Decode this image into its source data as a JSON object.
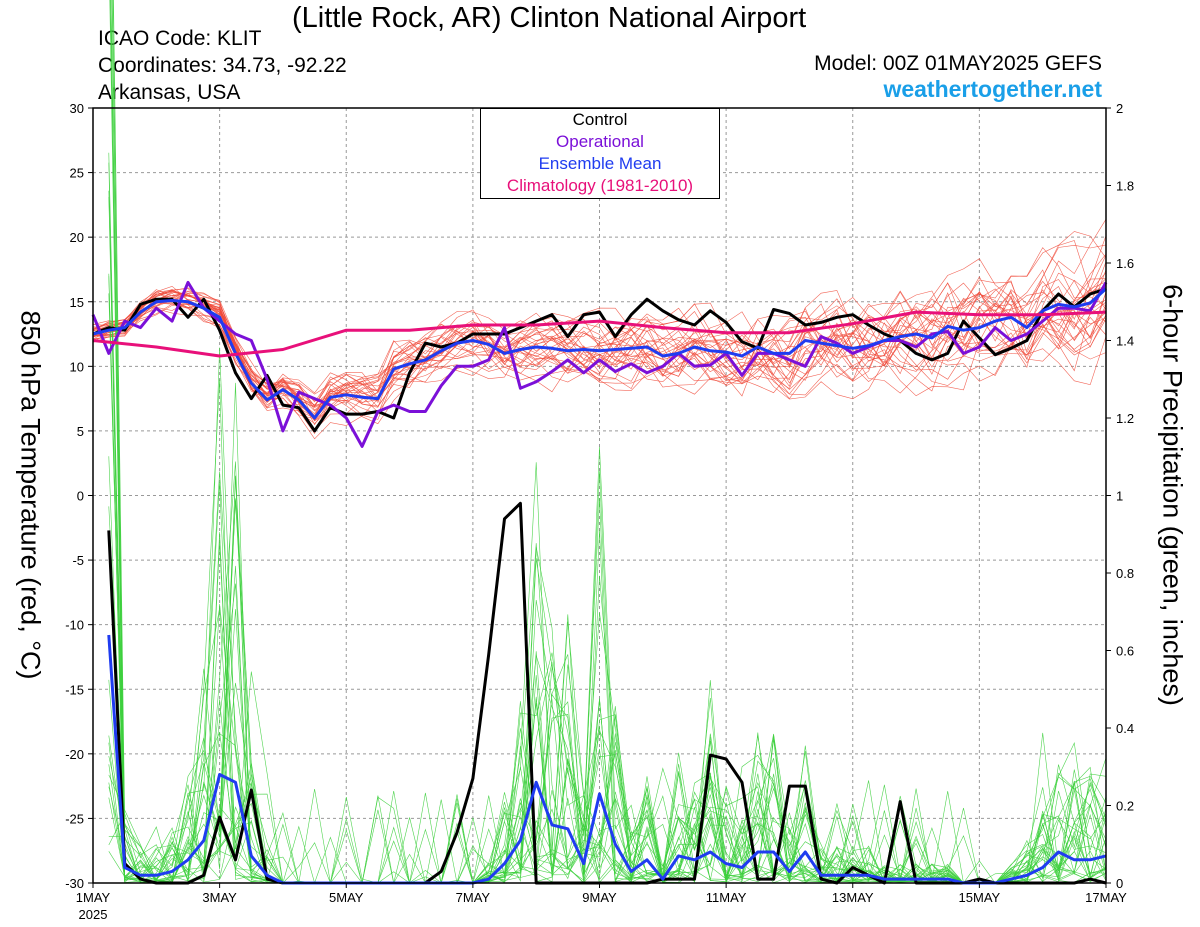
{
  "header": {
    "title": "(Little Rock, AR) Clinton National Airport",
    "icao": "ICAO Code: KLIT",
    "coordinates": "Coordinates: 34.73, -92.22",
    "region": "Arkansas, USA",
    "model": "Model: 00Z 01MAY2025 GEFS",
    "site": "weathertogether.net"
  },
  "legend": {
    "control": "Control",
    "operational": "Operational",
    "ensemble_mean": "Ensemble Mean",
    "climatology": "Climatology (1981-2010)"
  },
  "colors": {
    "control": "#000000",
    "operational": "#7b10d8",
    "ensemble_mean": "#1f3cf0",
    "climatology": "#e8107a",
    "members_temp": "#f04a3a",
    "members_precip": "#3ccf3c",
    "site_link": "#1a9fe8"
  },
  "chart_data": {
    "type": "line",
    "x_unit": "days since 00Z 1 May 2025",
    "xlim": [
      0,
      16
    ],
    "x_ticks": [
      {
        "x": 0,
        "label": "1MAY",
        "sub": "2025"
      },
      {
        "x": 2,
        "label": "3MAY"
      },
      {
        "x": 4,
        "label": "5MAY"
      },
      {
        "x": 6,
        "label": "7MAY"
      },
      {
        "x": 8,
        "label": "9MAY"
      },
      {
        "x": 10,
        "label": "11MAY"
      },
      {
        "x": 12,
        "label": "13MAY"
      },
      {
        "x": 14,
        "label": "15MAY"
      },
      {
        "x": 16,
        "label": "17MAY"
      }
    ],
    "y_left": {
      "label": "850 hPa Temperature (red, °C)",
      "lim": [
        -30,
        30
      ],
      "ticks": [
        -30,
        -25,
        -20,
        -15,
        -10,
        -5,
        0,
        5,
        10,
        15,
        20,
        25,
        30
      ]
    },
    "y_right": {
      "label": "6-hour Precipitation (green, inches)",
      "lim": [
        0,
        2
      ],
      "ticks": [
        "0",
        "0.2",
        "0.4",
        "0.6",
        "0.8",
        "1",
        "1.2",
        "1.4",
        "1.6",
        "1.8",
        "2"
      ]
    },
    "grid": true,
    "legend_position": "top-center",
    "series": [
      {
        "name": "Control",
        "axis": "left",
        "x": [
          0,
          0.25,
          0.5,
          0.75,
          1,
          1.25,
          1.5,
          1.75,
          2,
          2.25,
          2.5,
          2.75,
          3,
          3.25,
          3.5,
          3.75,
          4,
          4.25,
          4.5,
          4.75,
          5,
          5.25,
          5.5,
          5.75,
          6,
          6.25,
          6.5,
          6.75,
          7,
          7.25,
          7.5,
          7.75,
          8,
          8.25,
          8.5,
          8.75,
          9,
          9.25,
          9.5,
          9.75,
          10,
          10.25,
          10.5,
          10.75,
          11,
          11.25,
          11.5,
          11.75,
          12,
          12.25,
          12.5,
          12.75,
          13,
          13.25,
          13.5,
          13.75,
          14,
          14.25,
          14.5,
          14.75,
          15,
          15.25,
          15.5,
          15.75,
          16
        ],
        "y": [
          12.5,
          13,
          12.8,
          14.8,
          15.2,
          15.2,
          13.8,
          15.2,
          12.8,
          9.5,
          7.5,
          9.3,
          7,
          6.8,
          5,
          6.8,
          6.3,
          6.3,
          6.5,
          6,
          9.5,
          11.8,
          11.5,
          11.8,
          12.5,
          12.5,
          12.5,
          13,
          13.5,
          14,
          12.3,
          14,
          14.2,
          12.3,
          14,
          15.2,
          14.3,
          13.6,
          13.2,
          14.3,
          13.4,
          11.9,
          11.4,
          14.4,
          14.1,
          13.2,
          13.4,
          13.8,
          14,
          13.2,
          12.5,
          12,
          11,
          10.5,
          11,
          13.5,
          12.2,
          10.9,
          11.4,
          12,
          14.3,
          15.6,
          14.6,
          15.6,
          16
        ]
      },
      {
        "name": "Operational",
        "axis": "left",
        "x": [
          0,
          0.25,
          0.5,
          0.75,
          1,
          1.25,
          1.5,
          1.75,
          2,
          2.25,
          2.5,
          2.75,
          3,
          3.25,
          3.5,
          3.75,
          4,
          4.25,
          4.5,
          4.75,
          5,
          5.25,
          5.5,
          5.75,
          6,
          6.25,
          6.5,
          6.75,
          7,
          7.25,
          7.5,
          7.75,
          8,
          8.25,
          8.5,
          8.75,
          9,
          9.25,
          9.5,
          9.75,
          10,
          10.25,
          10.5,
          10.75,
          11,
          11.25,
          11.5,
          11.75,
          12,
          12.25,
          12.5,
          12.75,
          13,
          13.25,
          13.5,
          13.75,
          14,
          14.25,
          14.5,
          14.75,
          15,
          15.25,
          15.5,
          15.75,
          16
        ],
        "y": [
          14,
          11,
          13.5,
          13,
          14.5,
          13.5,
          16.5,
          14.5,
          13.5,
          12.5,
          12,
          9,
          5,
          8,
          7.5,
          7,
          6,
          3.8,
          6.5,
          7,
          6.5,
          6.5,
          8.5,
          10,
          10,
          10.5,
          13,
          8.3,
          8.8,
          9.6,
          10.5,
          9.5,
          10.5,
          9.6,
          10.2,
          9.5,
          10,
          11,
          10,
          10.1,
          11,
          9.3,
          11,
          11,
          10.5,
          10,
          12.3,
          11.8,
          11,
          11.5,
          12,
          12,
          11.5,
          12.5,
          12.7,
          11,
          11.5,
          13,
          12,
          12.5,
          13.5,
          14.5,
          14.5,
          14.3,
          16.5
        ]
      },
      {
        "name": "Ensemble Mean",
        "axis": "left",
        "x": [
          0,
          0.25,
          0.5,
          0.75,
          1,
          1.25,
          1.5,
          1.75,
          2,
          2.25,
          2.5,
          2.75,
          3,
          3.25,
          3.5,
          3.75,
          4,
          4.25,
          4.5,
          4.75,
          5,
          5.25,
          5.5,
          5.75,
          6,
          6.25,
          6.5,
          6.75,
          7,
          7.25,
          7.5,
          7.75,
          8,
          8.25,
          8.5,
          8.75,
          9,
          9.25,
          9.5,
          9.75,
          10,
          10.25,
          10.5,
          10.75,
          11,
          11.25,
          11.5,
          11.75,
          12,
          12.25,
          12.5,
          12.75,
          13,
          13.25,
          13.5,
          13.75,
          14,
          14.25,
          14.5,
          14.75,
          15,
          15.25,
          15.5,
          15.75,
          16
        ],
        "y": [
          12.5,
          12.8,
          13,
          14.2,
          15,
          15.1,
          15,
          14.5,
          13.8,
          11,
          8.7,
          7.4,
          8.2,
          7.4,
          6,
          7.6,
          7.8,
          7.6,
          7.5,
          9.8,
          10.2,
          10.5,
          11.2,
          11.8,
          12,
          11.7,
          11,
          11.3,
          11.5,
          11.4,
          11.2,
          11.3,
          11.2,
          11.3,
          11.4,
          11.5,
          10.8,
          11,
          11.5,
          11.2,
          11.1,
          10.8,
          11.5,
          11,
          11,
          12,
          11.8,
          11.6,
          11.4,
          11.6,
          12,
          12.3,
          12.5,
          12.2,
          13.1,
          12.8,
          13,
          13.5,
          13.8,
          13,
          14.3,
          14.8,
          14.6,
          14.9,
          16
        ]
      },
      {
        "name": "Climatology (1981-2010)",
        "axis": "left",
        "x": [
          0,
          1,
          2,
          3,
          4,
          5,
          6,
          7,
          8,
          9,
          10,
          11,
          12,
          13,
          14,
          15,
          16
        ],
        "y": [
          12,
          11.5,
          10.8,
          11.3,
          12.8,
          12.8,
          13.2,
          13.2,
          13.5,
          13,
          12.6,
          12.6,
          13.3,
          14.2,
          14,
          14,
          14.2
        ]
      },
      {
        "name": "Control",
        "axis": "right",
        "x": [
          0.25,
          0.5,
          0.75,
          1,
          1.25,
          1.5,
          1.75,
          2,
          2.25,
          2.5,
          2.75,
          3,
          3.25,
          3.5,
          3.75,
          4,
          4.25,
          4.5,
          4.75,
          5,
          5.25,
          5.5,
          5.75,
          6,
          6.25,
          6.5,
          6.75,
          7,
          7.25,
          7.5,
          7.75,
          8,
          8.25,
          8.5,
          8.75,
          9,
          9.25,
          9.5,
          9.75,
          10,
          10.25,
          10.5,
          10.75,
          11,
          11.25,
          11.5,
          11.75,
          12,
          12.25,
          12.5,
          12.75,
          13,
          13.25,
          13.5,
          13.75,
          14,
          14.25,
          14.5,
          14.75,
          15,
          15.25,
          15.5,
          15.75,
          16
        ],
        "y": [
          0.91,
          0.05,
          0.01,
          0,
          0,
          0,
          0.02,
          0.17,
          0.06,
          0.24,
          0.01,
          0,
          0,
          0,
          0,
          0,
          0,
          0,
          0,
          0,
          0,
          0.03,
          0.13,
          0.27,
          0.59,
          0.94,
          0.98,
          0,
          0,
          0,
          0,
          0,
          0,
          0,
          0,
          0.01,
          0.01,
          0.01,
          0.33,
          0.32,
          0.26,
          0.01,
          0.01,
          0.25,
          0.25,
          0.01,
          0,
          0.04,
          0.02,
          0,
          0.21,
          0,
          0,
          0,
          0,
          0.01,
          0,
          0,
          0,
          0,
          0,
          0,
          0.01,
          0
        ]
      },
      {
        "name": "Ensemble Mean",
        "axis": "right",
        "x": [
          0.25,
          0.5,
          0.75,
          1,
          1.25,
          1.5,
          1.75,
          2,
          2.25,
          2.5,
          2.75,
          3,
          3.25,
          3.5,
          3.75,
          4,
          4.25,
          4.5,
          4.75,
          5,
          5.25,
          5.5,
          5.75,
          6,
          6.25,
          6.5,
          6.75,
          7,
          7.25,
          7.5,
          7.75,
          8,
          8.25,
          8.5,
          8.75,
          9,
          9.25,
          9.5,
          9.75,
          10,
          10.25,
          10.5,
          10.75,
          11,
          11.25,
          11.5,
          11.75,
          12,
          12.25,
          12.5,
          12.75,
          13,
          13.25,
          13.5,
          13.75,
          14,
          14.25,
          14.5,
          14.75,
          15,
          15.25,
          15.5,
          15.75,
          16
        ],
        "y": [
          0.64,
          0.04,
          0.02,
          0.02,
          0.03,
          0.06,
          0.11,
          0.28,
          0.26,
          0.07,
          0.02,
          0,
          0,
          0,
          0,
          0,
          0,
          0,
          0,
          0,
          0,
          0,
          0,
          0,
          0.01,
          0.05,
          0.11,
          0.26,
          0.15,
          0.14,
          0.05,
          0.23,
          0.1,
          0.03,
          0.06,
          0.01,
          0.07,
          0.06,
          0.08,
          0.05,
          0.04,
          0.08,
          0.08,
          0.03,
          0.08,
          0.02,
          0.02,
          0.02,
          0.02,
          0.01,
          0.01,
          0.01,
          0.01,
          0.01,
          0,
          0,
          0,
          0.01,
          0.02,
          0.04,
          0.08,
          0.06,
          0.06,
          0.07
        ]
      }
    ],
    "member_bands": [
      {
        "name": "members_temp",
        "axis": "left",
        "count": 30
      },
      {
        "name": "members_precip",
        "axis": "right",
        "count": 30
      }
    ]
  }
}
